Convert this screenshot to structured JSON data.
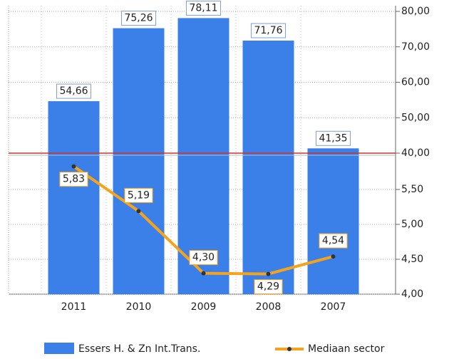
{
  "chart_data": [
    {
      "type": "bar",
      "categories": [
        "2011",
        "2010",
        "2009",
        "2008",
        "2007"
      ],
      "series": [
        {
          "name": "Essers H. & Zn Int.Trans.",
          "color": "#3a80e8",
          "values": [
            54.66,
            75.26,
            78.11,
            71.76,
            41.35
          ],
          "value_labels": [
            "54,66",
            "75,26",
            "78,11",
            "71,76",
            "41,35"
          ]
        }
      ],
      "ylim": [
        40,
        80
      ],
      "yticks": [
        {
          "value": 40,
          "label": "40,00"
        },
        {
          "value": 50,
          "label": "50,00"
        },
        {
          "value": 60,
          "label": "60,00"
        },
        {
          "value": 70,
          "label": "70,00"
        },
        {
          "value": 80,
          "label": "80,00"
        }
      ],
      "grid": true
    },
    {
      "type": "line",
      "series": [
        {
          "name": "Mediaan sector",
          "color": "#f5a21c",
          "values": [
            5.83,
            5.19,
            4.3,
            4.29,
            4.54
          ],
          "value_labels": [
            "5,83",
            "5,19",
            "4,30",
            "4,29",
            "4,54"
          ]
        }
      ],
      "ylim": [
        4,
        6
      ],
      "yticks": [
        {
          "value": 4,
          "label": "4,00"
        },
        {
          "value": 4.5,
          "label": "4,50"
        },
        {
          "value": 5,
          "label": "5,00"
        },
        {
          "value": 5.5,
          "label": "5,50"
        }
      ],
      "grid": true
    }
  ]
}
